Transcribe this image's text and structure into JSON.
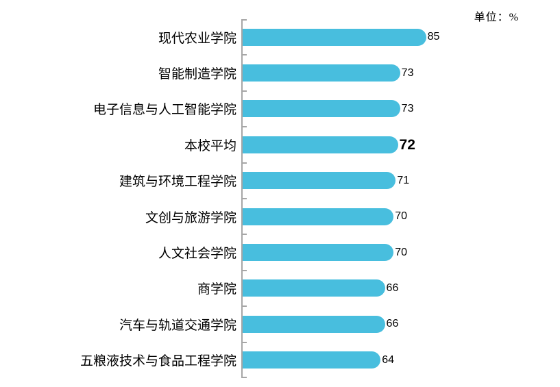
{
  "page": {
    "background": "#ffffff"
  },
  "header": {
    "unit_label": "单位：%"
  },
  "chart_data": {
    "type": "bar",
    "orientation": "horizontal",
    "title": "",
    "xlabel": "",
    "ylabel": "",
    "unit": "%",
    "categories": [
      "现代农业学院",
      "智能制造学院",
      "电子信息与人工智能学院",
      "本校平均",
      "建筑与环境工程学院",
      "文创与旅游学院",
      "人文社会学院",
      "商学院",
      "汽车与轨道交通学院",
      "五粮液技术与食品工程学院"
    ],
    "values": [
      85,
      73,
      73,
      72,
      71,
      70,
      70,
      66,
      66,
      64
    ],
    "emphasized_category": "本校平均",
    "emphasized_index": 3,
    "value_labels_shown": true,
    "value_axis_labels_shown": false,
    "grid": false,
    "legend": false,
    "xlim": [
      0,
      100
    ],
    "bar_color": "#48BEDE",
    "axis_color": "#A6A6A6",
    "text_color": "#000000"
  }
}
